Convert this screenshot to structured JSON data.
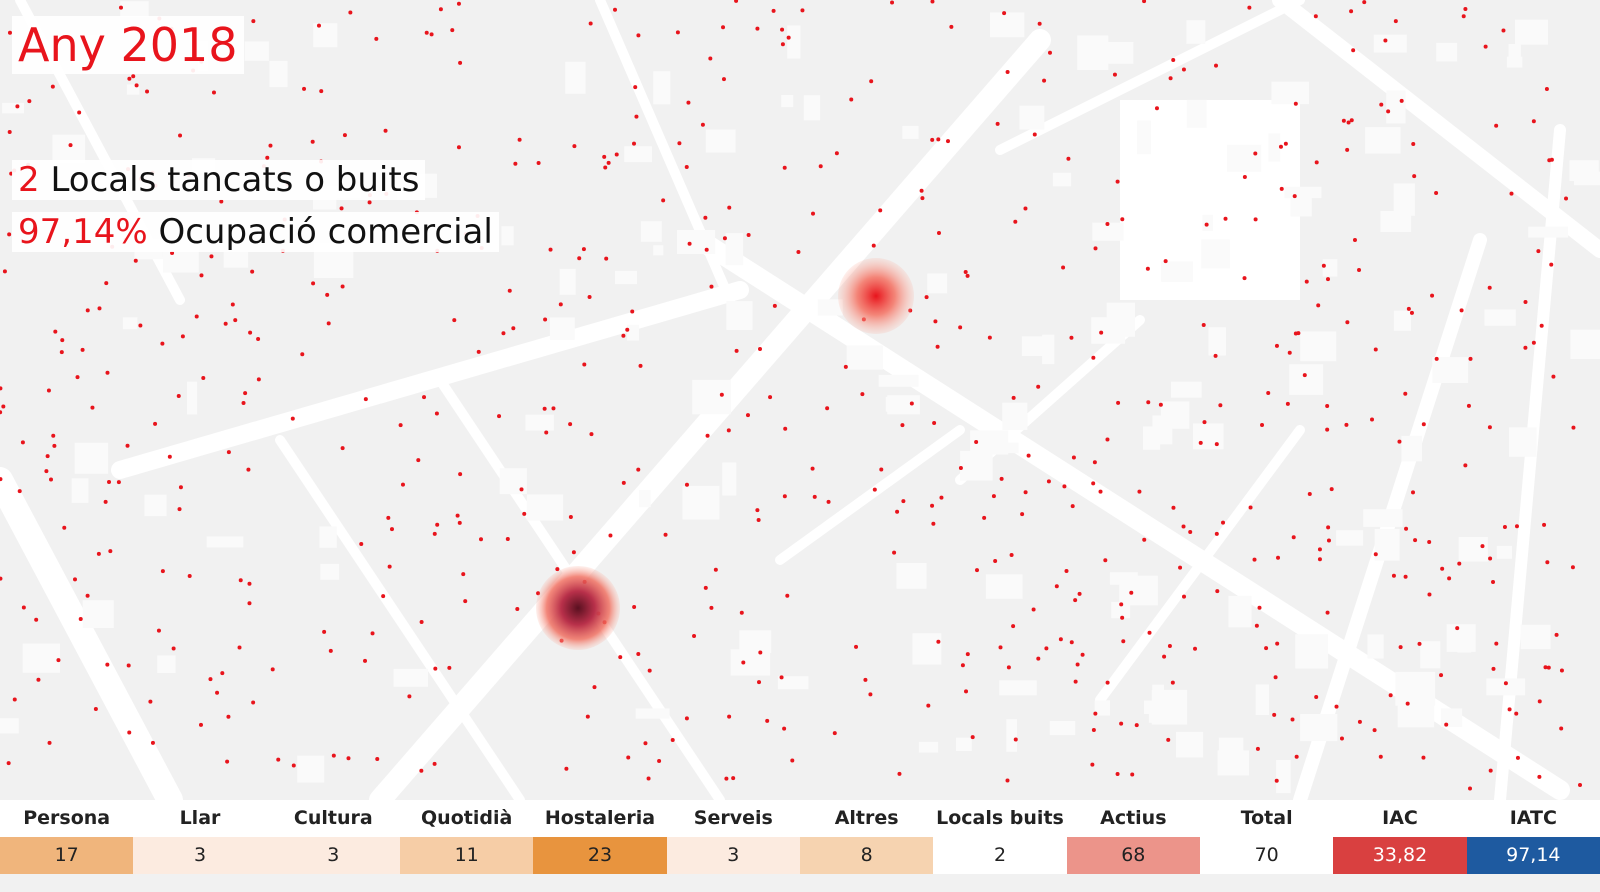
{
  "header": {
    "title": "Any 2018"
  },
  "summary": {
    "closed_count": "2",
    "closed_label": "Locals tancats o buits",
    "occupancy": "97,14%",
    "occupancy_label": "Ocupació comercial"
  },
  "table": {
    "headers": [
      "Persona",
      "Llar",
      "Cultura",
      "Quotidià",
      "Hostaleria",
      "Serveis",
      "Altres",
      "Locals buits",
      "Actius",
      "Total",
      "IAC",
      "IATC"
    ],
    "rows": [
      [
        "17",
        "3",
        "3",
        "11",
        "23",
        "3",
        "8",
        "2",
        "68",
        "70",
        "33,82",
        "97,14"
      ]
    ]
  }
}
